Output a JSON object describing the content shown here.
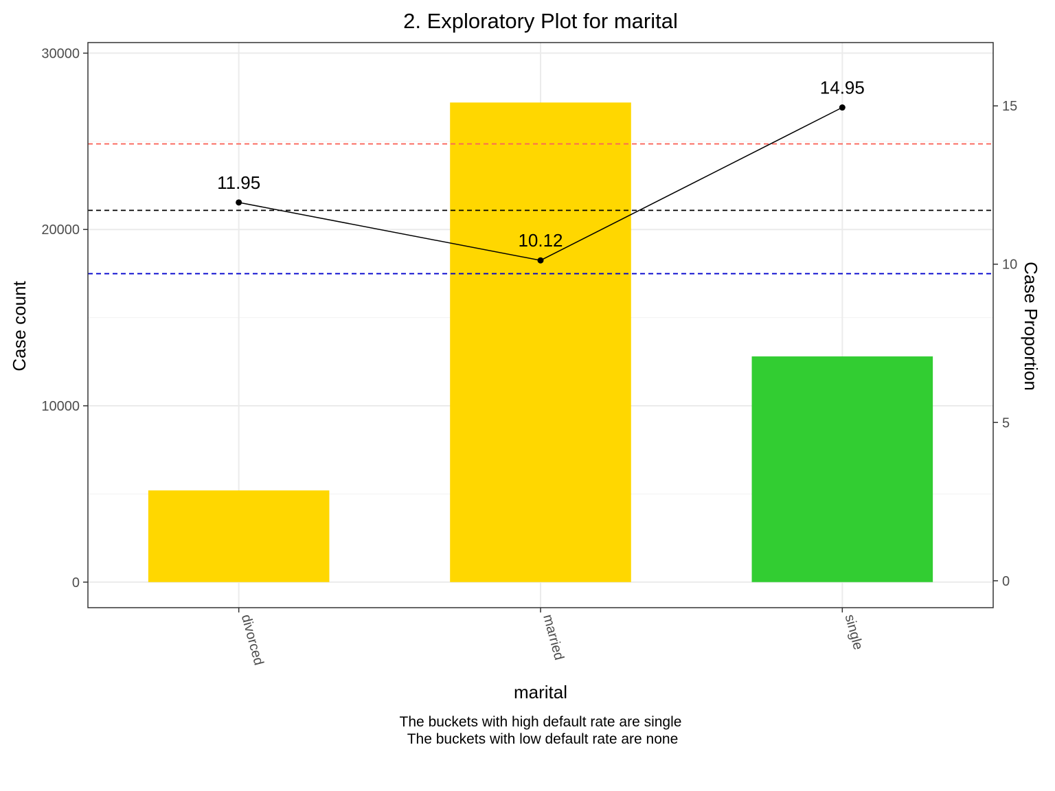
{
  "chart_data": {
    "type": "bar",
    "title": "2. Exploratory Plot for marital",
    "xlabel": "marital",
    "ylabel": "Case count",
    "y2label": "Case Proportion",
    "categories": [
      "divorced",
      "married",
      "single"
    ],
    "ylim": [
      -1450,
      30600
    ],
    "y2lim": [
      -0.85,
      17.0
    ],
    "yticks": [
      0,
      10000,
      20000,
      30000
    ],
    "y2ticks": [
      0,
      5,
      10,
      15
    ],
    "grid": true,
    "series": [
      {
        "kind": "bar",
        "axis": "left",
        "values": [
          5200,
          27200,
          12800
        ],
        "colors": [
          "#FFD700",
          "#FFD700",
          "#32CD32"
        ]
      },
      {
        "kind": "line",
        "axis": "right",
        "values": [
          11.95,
          10.12,
          14.95
        ],
        "labels": [
          "11.95",
          "10.12",
          "14.95"
        ],
        "color": "#000000"
      }
    ],
    "reference_lines": [
      {
        "axis": "right",
        "value": 13.8,
        "color": "#FA6459",
        "style": "dashed"
      },
      {
        "axis": "right",
        "value": 11.7,
        "color": "#000000",
        "style": "dashed"
      },
      {
        "axis": "right",
        "value": 9.7,
        "color": "#0000CD",
        "style": "dashed"
      }
    ],
    "caption": [
      "The buckets with high default rate are single",
      "The buckets with low default rate are none"
    ]
  }
}
